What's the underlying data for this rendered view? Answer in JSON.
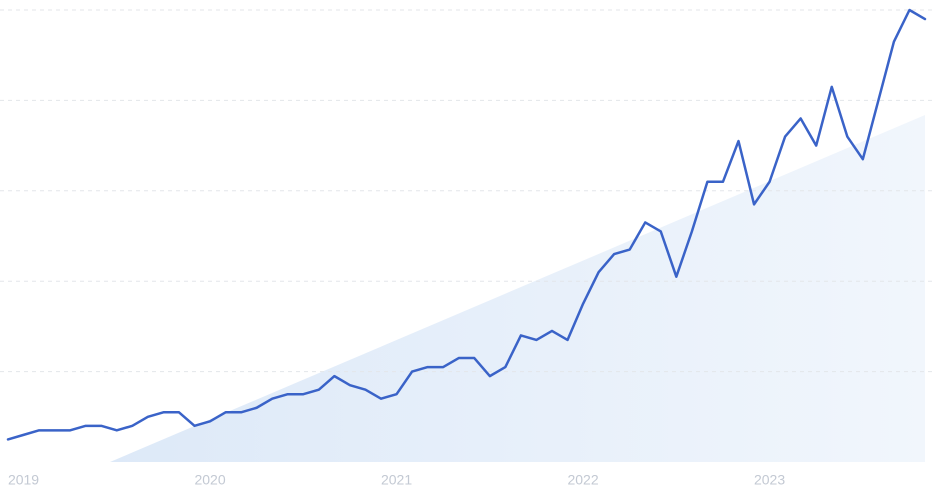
{
  "chart_data": {
    "type": "line",
    "categories": [
      null,
      "2019",
      null,
      null,
      null,
      null,
      null,
      null,
      null,
      null,
      null,
      null,
      null,
      "2020",
      null,
      null,
      null,
      null,
      null,
      null,
      null,
      null,
      null,
      null,
      null,
      "2021",
      null,
      null,
      null,
      null,
      null,
      null,
      null,
      null,
      null,
      null,
      null,
      "2022",
      null,
      null,
      null,
      null,
      null,
      null,
      null,
      null,
      null,
      null,
      null,
      "2023",
      null,
      null,
      null,
      null,
      null,
      null,
      null,
      null,
      null,
      null
    ],
    "values": [
      5,
      6,
      7,
      7,
      7,
      8,
      8,
      7,
      8,
      10,
      11,
      11,
      8,
      9,
      11,
      11,
      12,
      14,
      15,
      15,
      16,
      19,
      17,
      16,
      14,
      15,
      20,
      21,
      21,
      23,
      23,
      19,
      21,
      28,
      27,
      29,
      27,
      35,
      42,
      46,
      47,
      53,
      51,
      41,
      51,
      62,
      62,
      71,
      57,
      62,
      72,
      76,
      70,
      83,
      72,
      67,
      80,
      93,
      100,
      98
    ],
    "color": "#3a63c8",
    "ylim": [
      0,
      100
    ],
    "yticks": [
      20,
      40,
      60,
      80,
      100
    ],
    "grid": true
  }
}
